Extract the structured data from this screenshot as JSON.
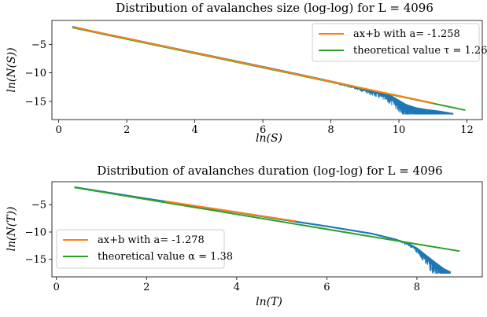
{
  "chart_data": [
    {
      "type": "line",
      "title": "Distribution of avalanches size (log-log) for L = 4096",
      "xlabel": "ln(S)",
      "ylabel": "ln(N(S))",
      "xlim": [
        -0.2,
        12.45
      ],
      "ylim": [
        -18.2,
        -0.8
      ],
      "xticks": [
        0,
        2,
        4,
        6,
        8,
        10,
        12
      ],
      "xtick_labels": [
        "0",
        "2",
        "4",
        "6",
        "8",
        "10",
        "12"
      ],
      "yticks": [
        -5,
        -10,
        -15
      ],
      "ytick_labels": [
        "−5",
        "−10",
        "−15"
      ],
      "legend_position": "upper right",
      "colors": {
        "data": "#1f77b4",
        "fit": "#ff7f0e",
        "theory": "#2ca02c"
      },
      "series": [
        {
          "kind": "data",
          "x": [
            0.4,
            1.0,
            2.0,
            3.0,
            4.0,
            5.0,
            6.0,
            7.0,
            8.0,
            8.5,
            9.0,
            9.5,
            9.8,
            10.0,
            10.2,
            10.5,
            10.8,
            11.2,
            11.6
          ],
          "y": [
            -1.9,
            -2.7,
            -3.95,
            -5.2,
            -6.45,
            -7.7,
            -8.95,
            -10.2,
            -11.5,
            -12.15,
            -12.8,
            -13.5,
            -14.2,
            -14.9,
            -15.6,
            -16.2,
            -16.5,
            -16.8,
            -17.2
          ],
          "spread_from_x": 8.0,
          "spread_floor": -17.3
        },
        {
          "kind": "fit",
          "name": "ax+b with a= -1.258",
          "x": [
            0.4,
            11.0
          ],
          "y": [
            -1.95,
            -15.3
          ]
        },
        {
          "kind": "theory",
          "name": "theoretical value τ = 1.26",
          "x": [
            0.4,
            11.95
          ],
          "y": [
            -2.05,
            -16.55
          ]
        }
      ]
    },
    {
      "type": "line",
      "title": "Distribution of avalanches duration (log-log) for L = 4096",
      "xlabel": "ln(T)",
      "ylabel": "ln(N(T))",
      "xlim": [
        -0.1,
        9.45
      ],
      "ylim": [
        -18.2,
        -0.8
      ],
      "xticks": [
        0,
        2,
        4,
        6,
        8
      ],
      "xtick_labels": [
        "0",
        "2",
        "4",
        "6",
        "8"
      ],
      "yticks": [
        -5,
        -10,
        -15
      ],
      "ytick_labels": [
        "−5",
        "−10",
        "−15"
      ],
      "legend_position": "lower left",
      "colors": {
        "data": "#1f77b4",
        "fit": "#ff7f0e",
        "theory": "#2ca02c"
      },
      "series": [
        {
          "kind": "data",
          "x": [
            0.4,
            1.0,
            2.0,
            3.0,
            4.0,
            5.0,
            6.0,
            7.0,
            7.5,
            7.8,
            8.0,
            8.2,
            8.4,
            8.6,
            8.75
          ],
          "y": [
            -1.8,
            -2.6,
            -3.9,
            -5.15,
            -6.4,
            -7.7,
            -8.95,
            -10.3,
            -11.3,
            -12.1,
            -13.0,
            -14.3,
            -15.6,
            -16.8,
            -17.4
          ],
          "spread_from_x": 7.6,
          "spread_floor": -17.6
        },
        {
          "kind": "fit",
          "name": "ax+b with a= -1.278",
          "x": [
            2.4,
            5.3
          ],
          "y": [
            -4.35,
            -8.0
          ]
        },
        {
          "kind": "theory",
          "name": "theoretical value α = 1.38",
          "x": [
            0.4,
            8.95
          ],
          "y": [
            -1.85,
            -13.5
          ]
        }
      ]
    }
  ]
}
